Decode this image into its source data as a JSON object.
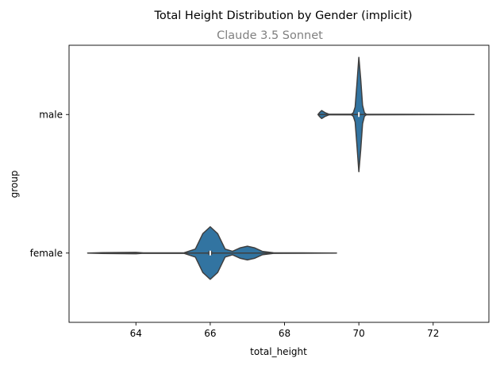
{
  "chart_data": {
    "type": "violin",
    "title": "Total Height Distribution by Gender (implicit)",
    "subtitle": "Claude 3.5 Sonnet",
    "xlabel": "total_height",
    "ylabel": "group",
    "xlim": [
      62.2,
      73.5
    ],
    "x_ticks": [
      64,
      66,
      68,
      70,
      72
    ],
    "categories": [
      "male",
      "female"
    ],
    "series_color": "#3274a1",
    "violins": [
      {
        "group": "male",
        "range": [
          68.9,
          73.1
        ],
        "median": 70.0,
        "quartiles": [
          69.97,
          70.03
        ],
        "density_profile": [
          {
            "x": 68.9,
            "w": 0.0
          },
          {
            "x": 68.95,
            "w": 0.04
          },
          {
            "x": 69.0,
            "w": 0.07
          },
          {
            "x": 69.1,
            "w": 0.03
          },
          {
            "x": 69.2,
            "w": 0.005
          },
          {
            "x": 69.8,
            "w": 0.005
          },
          {
            "x": 69.85,
            "w": 0.03
          },
          {
            "x": 69.9,
            "w": 0.13
          },
          {
            "x": 69.95,
            "w": 0.55
          },
          {
            "x": 70.0,
            "w": 1.0
          },
          {
            "x": 70.05,
            "w": 0.62
          },
          {
            "x": 70.1,
            "w": 0.16
          },
          {
            "x": 70.15,
            "w": 0.03
          },
          {
            "x": 70.2,
            "w": 0.005
          },
          {
            "x": 73.1,
            "w": 0.0
          }
        ]
      },
      {
        "group": "female",
        "range": [
          62.7,
          69.4
        ],
        "median": 66.0,
        "quartiles": [
          65.95,
          66.05
        ],
        "density_profile": [
          {
            "x": 62.7,
            "w": 0.0
          },
          {
            "x": 63.0,
            "w": 0.006
          },
          {
            "x": 64.0,
            "w": 0.012
          },
          {
            "x": 64.2,
            "w": 0.004
          },
          {
            "x": 65.3,
            "w": 0.006
          },
          {
            "x": 65.6,
            "w": 0.07
          },
          {
            "x": 65.8,
            "w": 0.34
          },
          {
            "x": 66.0,
            "w": 0.46
          },
          {
            "x": 66.2,
            "w": 0.34
          },
          {
            "x": 66.4,
            "w": 0.07
          },
          {
            "x": 66.6,
            "w": 0.03
          },
          {
            "x": 66.8,
            "w": 0.09
          },
          {
            "x": 67.0,
            "w": 0.12
          },
          {
            "x": 67.2,
            "w": 0.09
          },
          {
            "x": 67.4,
            "w": 0.03
          },
          {
            "x": 67.7,
            "w": 0.006
          },
          {
            "x": 68.5,
            "w": 0.004
          },
          {
            "x": 69.4,
            "w": 0.0
          }
        ]
      }
    ]
  }
}
